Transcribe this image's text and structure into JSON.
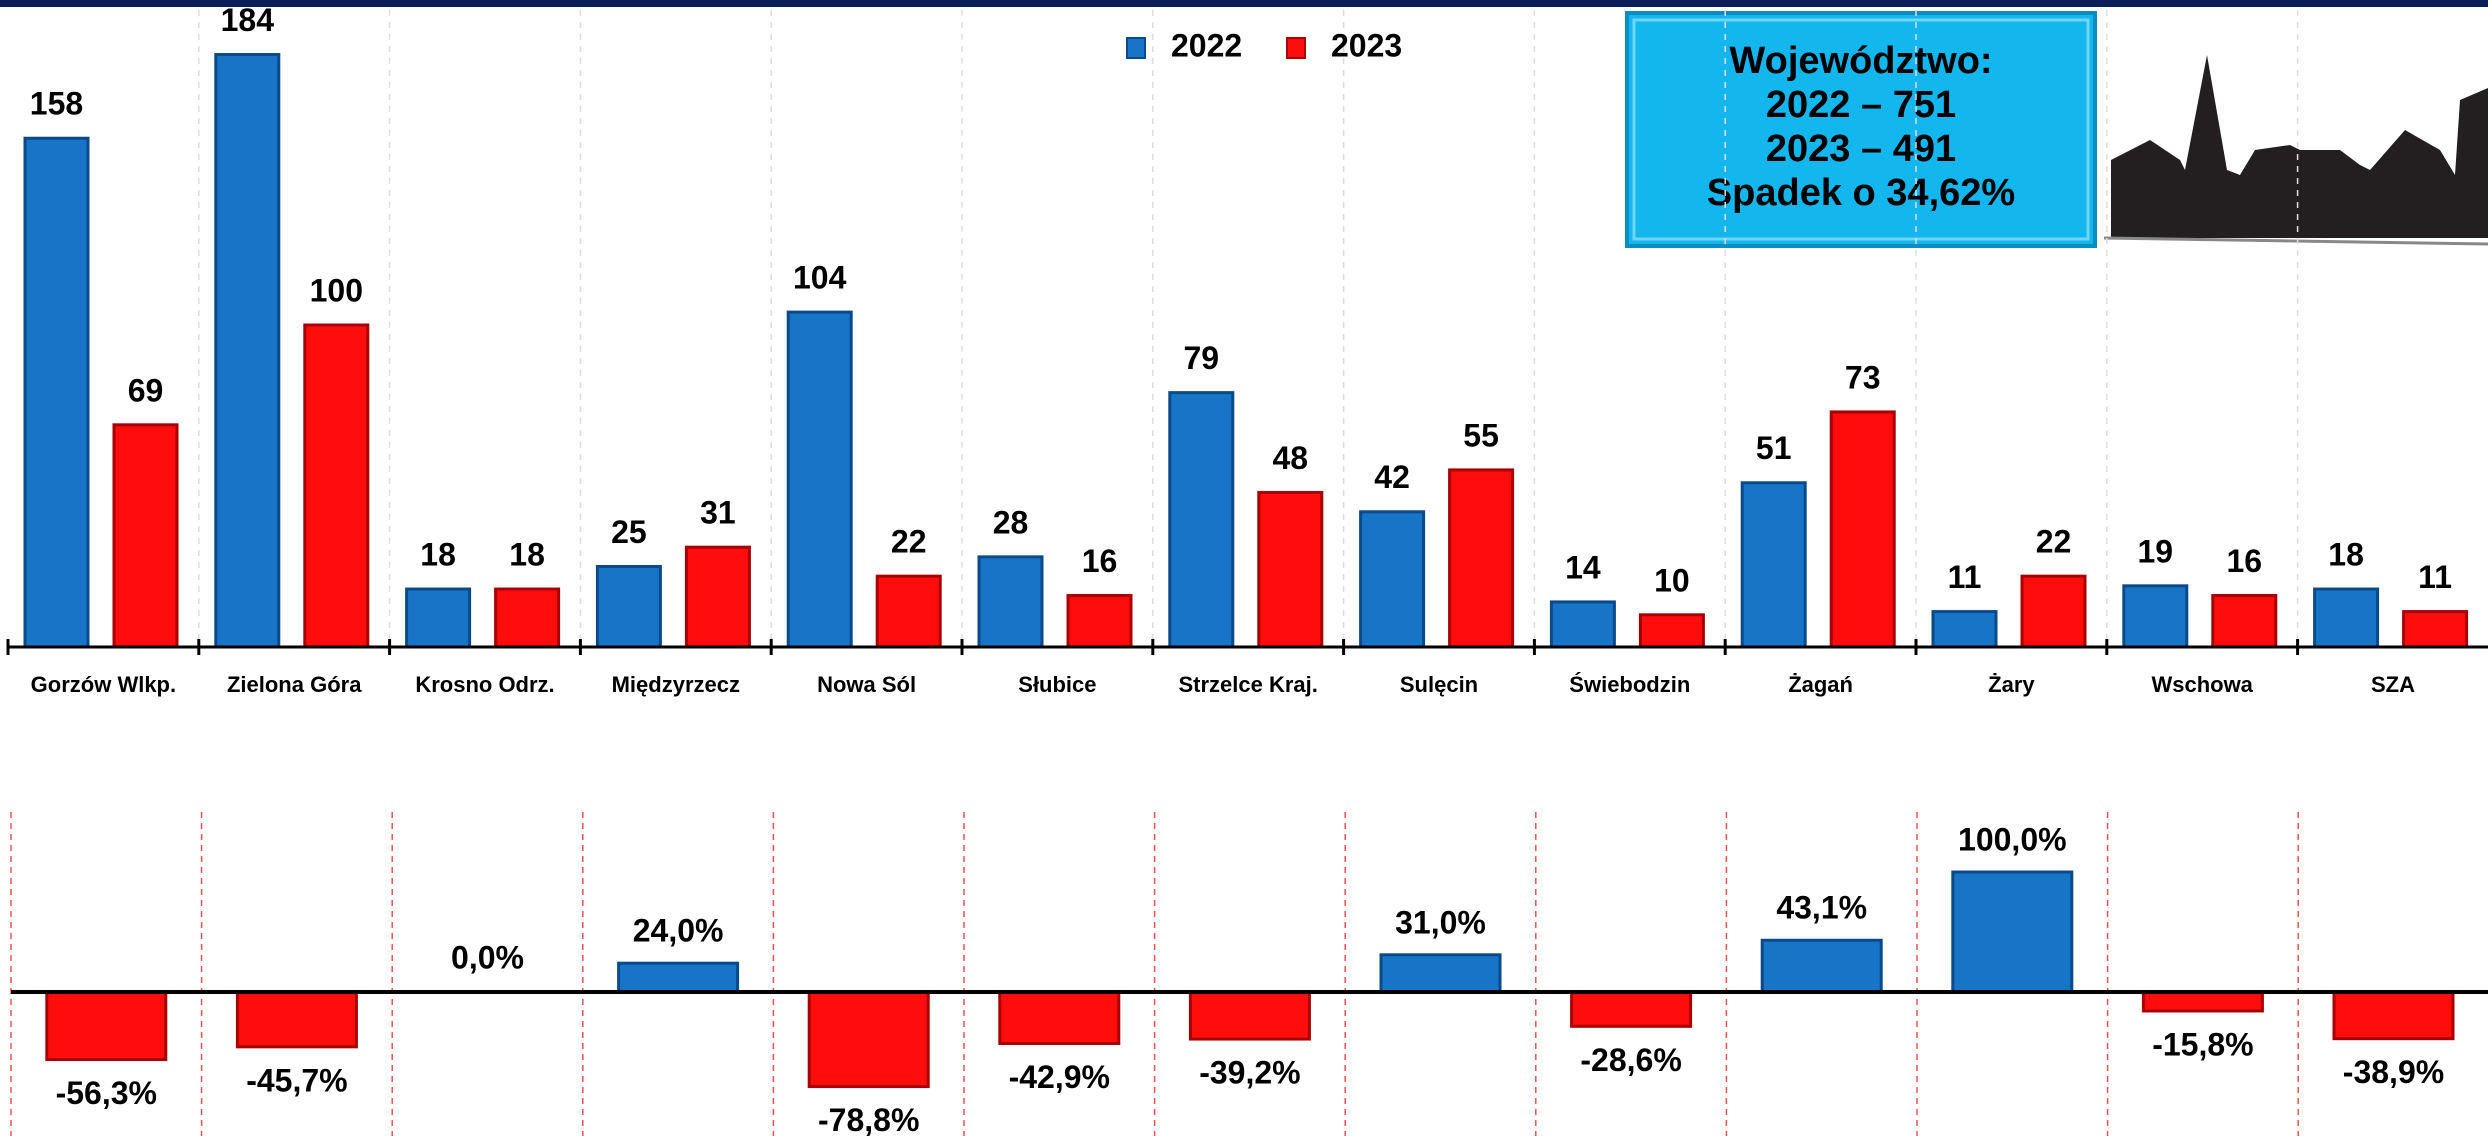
{
  "chart_data": [
    {
      "type": "bar",
      "categories": [
        "Gorzów  Wlkp.",
        "Zielona Góra",
        "Krosno Odrz.",
        "Międzyrzecz",
        "Nowa Sól",
        "Słubice",
        "Strzelce Kraj.",
        "Sulęcin",
        "Świebodzin",
        "Żagań",
        "Żary",
        "Wschowa",
        "SZA"
      ],
      "series": [
        {
          "name": "2022",
          "color": "#1874c6",
          "values": [
            158,
            184,
            18,
            25,
            104,
            28,
            79,
            42,
            14,
            51,
            11,
            19,
            18
          ]
        },
        {
          "name": "2023",
          "color": "#ff0d0d",
          "values": [
            69,
            100,
            18,
            31,
            22,
            16,
            48,
            55,
            10,
            73,
            22,
            16,
            11
          ]
        }
      ],
      "legend": "top"
    },
    {
      "type": "bar",
      "values": [
        -56.3,
        -45.7,
        0.0,
        24.0,
        -78.8,
        -42.9,
        -39.2,
        31.0,
        -28.6,
        43.1,
        100.0,
        -15.8,
        -38.9
      ],
      "value_labels": [
        "-56,3%",
        "-45,7%",
        "0,0%",
        "24,0%",
        "-78,8%",
        "-42,9%",
        "-39,2%",
        "31,0%",
        "-28,6%",
        "43,1%",
        "100,0%",
        "-15,8%",
        "-38,9%"
      ],
      "positive_color": "#1874c6",
      "negative_color": "#ff0d0d"
    }
  ],
  "info_box": {
    "lines": [
      "Województwo:",
      "2022 – 751",
      "2023 – 491",
      "Spadek o 34,62%"
    ]
  }
}
